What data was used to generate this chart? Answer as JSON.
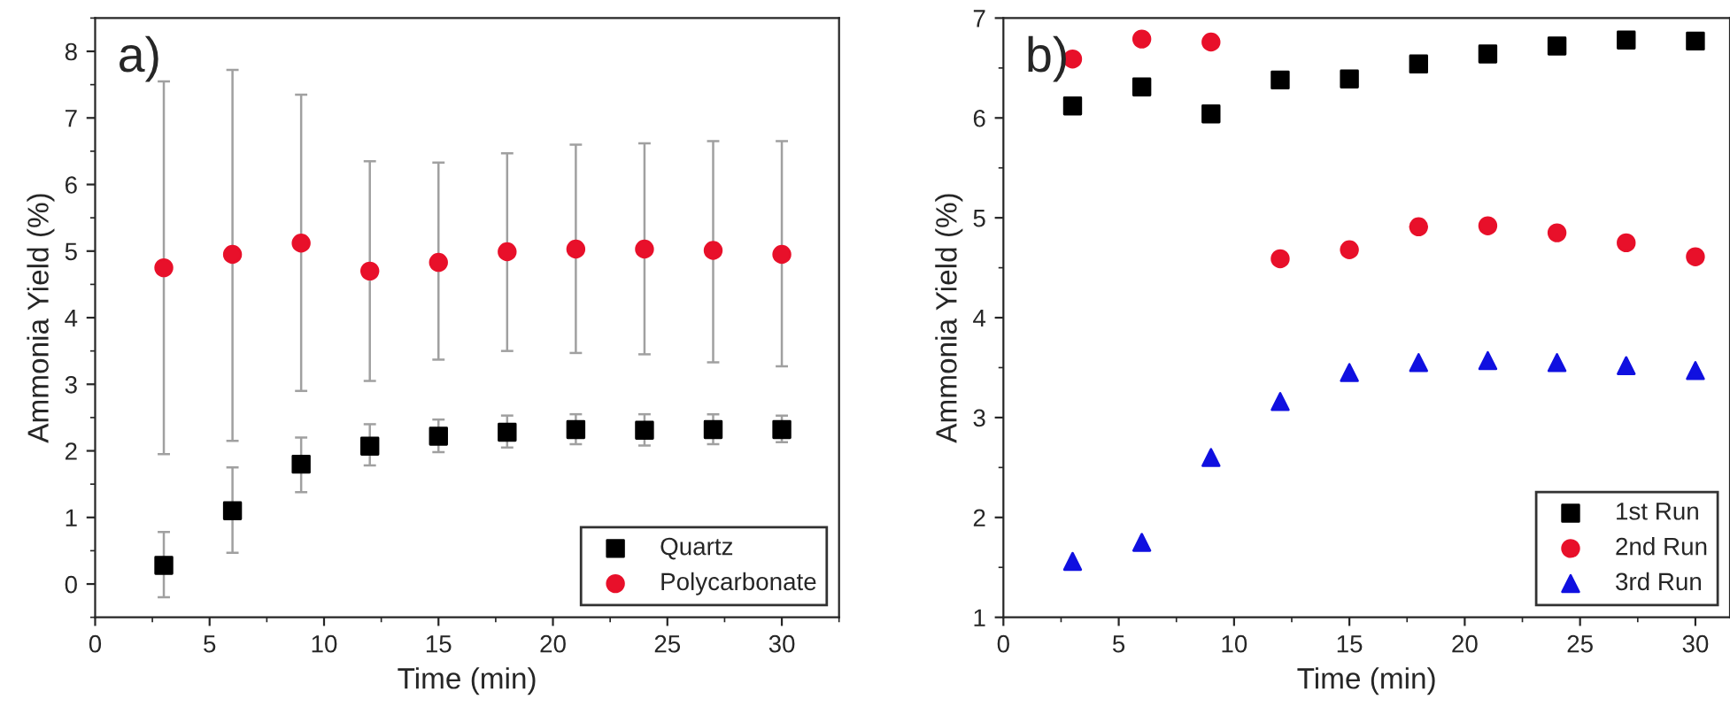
{
  "chart_data": [
    {
      "type": "scatter",
      "xlabel": "Time (min)",
      "ylabel": "Ammonia Yield (%)",
      "annotations": [
        "a)"
      ],
      "x": [
        3,
        6,
        9,
        12,
        15,
        18,
        21,
        24,
        27,
        30
      ],
      "xlim": [
        0,
        32.5
      ],
      "xticks": [
        0,
        5,
        10,
        15,
        20,
        25,
        30
      ],
      "ylim": [
        -0.5,
        8.5
      ],
      "yticks": [
        0,
        1,
        2,
        3,
        4,
        5,
        6,
        7,
        8
      ],
      "legend": "bottom right",
      "grid": false,
      "series": [
        {
          "name": "Quartz",
          "color": "#000000",
          "marker": "square",
          "values": [
            0.28,
            1.1,
            1.8,
            2.07,
            2.22,
            2.28,
            2.32,
            2.31,
            2.32,
            2.32
          ],
          "errors": [
            [
              -0.2,
              0.78
            ],
            [
              0.47,
              1.75
            ],
            [
              1.38,
              2.2
            ],
            [
              1.78,
              2.4
            ],
            [
              1.98,
              2.47
            ],
            [
              2.05,
              2.53
            ],
            [
              2.1,
              2.55
            ],
            [
              2.08,
              2.55
            ],
            [
              2.1,
              2.55
            ],
            [
              2.13,
              2.53
            ]
          ]
        },
        {
          "name": "Polycarbonate",
          "color": "#e8102a",
          "marker": "circle",
          "values": [
            4.75,
            4.95,
            5.12,
            4.7,
            4.83,
            4.99,
            5.03,
            5.03,
            5.01,
            4.95
          ],
          "errors": [
            [
              1.95,
              7.55
            ],
            [
              2.15,
              7.72
            ],
            [
              2.9,
              7.35
            ],
            [
              3.05,
              6.35
            ],
            [
              3.37,
              6.33
            ],
            [
              3.5,
              6.47
            ],
            [
              3.47,
              6.6
            ],
            [
              3.45,
              6.62
            ],
            [
              3.33,
              6.65
            ],
            [
              3.27,
              6.65
            ]
          ]
        }
      ]
    },
    {
      "type": "scatter",
      "xlabel": "Time (min)",
      "ylabel": "Ammonia Yield (%)",
      "annotations": [
        "b)"
      ],
      "x": [
        3,
        6,
        9,
        12,
        15,
        18,
        21,
        24,
        27,
        30
      ],
      "xlim": [
        0,
        31.5
      ],
      "xticks": [
        0,
        5,
        10,
        15,
        20,
        25,
        30
      ],
      "ylim": [
        1,
        7
      ],
      "yticks": [
        1,
        2,
        3,
        4,
        5,
        6,
        7
      ],
      "legend": "bottom right",
      "grid": false,
      "series": [
        {
          "name": "1st Run",
          "color": "#000000",
          "marker": "square",
          "values": [
            6.12,
            6.31,
            6.04,
            6.38,
            6.39,
            6.54,
            6.64,
            6.72,
            6.78,
            6.77
          ]
        },
        {
          "name": "2nd Run",
          "color": "#e8102a",
          "marker": "circle",
          "values": [
            6.59,
            6.79,
            6.76,
            4.59,
            4.68,
            4.91,
            4.92,
            4.85,
            4.75,
            4.61
          ]
        },
        {
          "name": "3rd Run",
          "color": "#1010e0",
          "marker": "triangle",
          "values": [
            1.56,
            1.75,
            2.6,
            3.16,
            3.45,
            3.55,
            3.57,
            3.55,
            3.52,
            3.47
          ]
        }
      ]
    }
  ]
}
